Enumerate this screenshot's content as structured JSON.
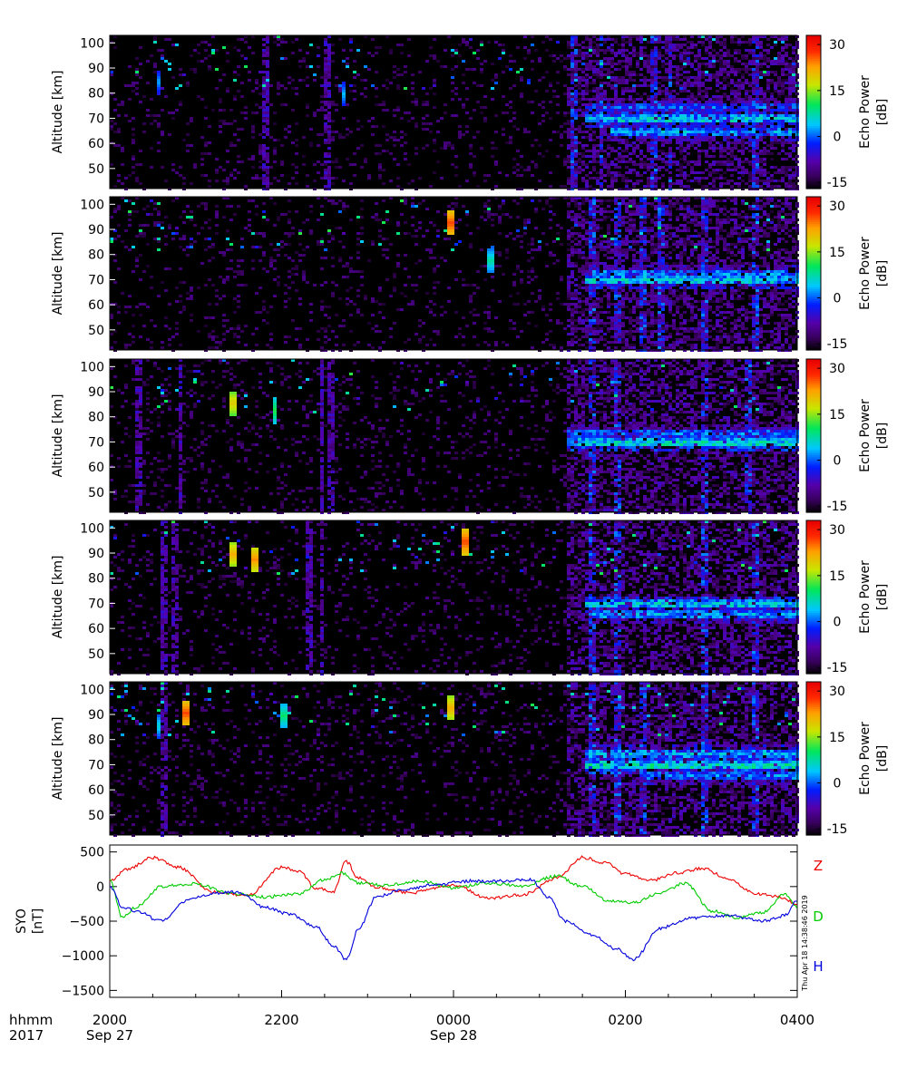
{
  "chart_data": [
    {
      "type": "heatmap",
      "ylabel": "Altitude [km]",
      "yticks": [
        50,
        60,
        70,
        80,
        90,
        100
      ],
      "ylim": [
        42,
        103
      ],
      "colorbar": {
        "label_line1": "Echo Power",
        "label_line2": "[dB]",
        "ticks": [
          -15,
          0,
          15,
          30
        ],
        "range": [
          -17,
          33
        ]
      },
      "x_span_hours": [
        0,
        8
      ],
      "features": {
        "layers": [
          {
            "start": 5.5,
            "alt": 70,
            "v": 6
          },
          {
            "start": 5.8,
            "alt": 65,
            "v": 3
          },
          {
            "start": 5.5,
            "alt": 75,
            "v": 0
          }
        ],
        "columns": [
          -0.1,
          1.8,
          2.5,
          5.4,
          5.7,
          6.3,
          6.5,
          7.5
        ],
        "blobs": [
          {
            "t": 0.55,
            "alt": 85,
            "v": 3
          },
          {
            "t": 2.7,
            "alt": 80,
            "v": 4
          }
        ]
      }
    },
    {
      "type": "heatmap",
      "ylabel": "Altitude [km]",
      "yticks": [
        50,
        60,
        70,
        80,
        90,
        100
      ],
      "ylim": [
        42,
        103
      ],
      "colorbar": {
        "label_line1": "Echo Power",
        "label_line2": "[dB]",
        "ticks": [
          -15,
          0,
          15,
          30
        ],
        "range": [
          -17,
          33
        ]
      },
      "x_span_hours": [
        0,
        8
      ],
      "features": {
        "layers": [
          {
            "start": 5.5,
            "alt": 70,
            "v": 6
          },
          {
            "start": 5.6,
            "alt": 73,
            "v": 2
          }
        ],
        "columns": [
          -0.1,
          5.6,
          5.9,
          6.2,
          6.4,
          6.9,
          7.5
        ],
        "blobs": [
          {
            "t": 3.95,
            "alt": 93,
            "v": 27
          },
          {
            "t": 4.4,
            "alt": 78,
            "v": 8
          }
        ]
      }
    },
    {
      "type": "heatmap",
      "ylabel": "Altitude [km]",
      "yticks": [
        50,
        60,
        70,
        80,
        90,
        100
      ],
      "ylim": [
        42,
        103
      ],
      "colorbar": {
        "label_line1": "Echo Power",
        "label_line2": "[dB]",
        "ticks": [
          -15,
          0,
          15,
          30
        ],
        "range": [
          -17,
          33
        ]
      },
      "x_span_hours": [
        0,
        8
      ],
      "features": {
        "layers": [
          {
            "start": 5.3,
            "alt": 70,
            "v": 7
          },
          {
            "start": 5.3,
            "alt": 74,
            "v": 1
          }
        ],
        "columns": [
          -0.1,
          0.3,
          0.8,
          2.45,
          2.55,
          5.6,
          5.9,
          6.9,
          7.4
        ],
        "blobs": [
          {
            "t": 1.4,
            "alt": 86,
            "v": 20
          },
          {
            "t": 1.9,
            "alt": 83,
            "v": 12
          }
        ]
      }
    },
    {
      "type": "heatmap",
      "ylabel": "Altitude [km]",
      "yticks": [
        50,
        60,
        70,
        80,
        90,
        100
      ],
      "ylim": [
        42,
        103
      ],
      "colorbar": {
        "label_line1": "Echo Power",
        "label_line2": "[dB]",
        "ticks": [
          -15,
          0,
          15,
          30
        ],
        "range": [
          -17,
          33
        ]
      },
      "x_span_hours": [
        0,
        8
      ],
      "features": {
        "layers": [
          {
            "start": 5.5,
            "alt": 70,
            "v": 6
          },
          {
            "start": 5.6,
            "alt": 66,
            "v": 3
          }
        ],
        "columns": [
          -0.1,
          0.6,
          0.75,
          2.3,
          2.45,
          5.6,
          5.9,
          6.9,
          7.5
        ],
        "blobs": [
          {
            "t": 1.4,
            "alt": 90,
            "v": 22
          },
          {
            "t": 1.65,
            "alt": 88,
            "v": 24
          },
          {
            "t": 4.1,
            "alt": 95,
            "v": 27
          }
        ]
      }
    },
    {
      "type": "heatmap",
      "ylabel": "Altitude [km]",
      "yticks": [
        50,
        60,
        70,
        80,
        90,
        100
      ],
      "ylim": [
        42,
        103
      ],
      "colorbar": {
        "label_line1": "Echo Power",
        "label_line2": "[dB]",
        "ticks": [
          -15,
          0,
          15,
          30
        ],
        "range": [
          -17,
          33
        ]
      },
      "x_span_hours": [
        0,
        8
      ],
      "features": {
        "layers": [
          {
            "start": 5.5,
            "alt": 70,
            "v": 8
          },
          {
            "start": 5.5,
            "alt": 75,
            "v": 4
          },
          {
            "start": 6.2,
            "alt": 66,
            "v": 2
          }
        ],
        "columns": [
          -0.1,
          0.6,
          5.6,
          5.9,
          6.2,
          6.9,
          7.5
        ],
        "blobs": [
          {
            "t": 0.55,
            "alt": 86,
            "v": 6
          },
          {
            "t": 0.85,
            "alt": 91,
            "v": 27
          },
          {
            "t": 2.0,
            "alt": 90,
            "v": 10
          },
          {
            "t": 3.95,
            "alt": 93,
            "v": 22
          }
        ]
      }
    },
    {
      "type": "line",
      "ylabel_line1": "SYO",
      "ylabel_line2": "[nT]",
      "ylim": [
        -1600,
        600
      ],
      "yticks": [
        500,
        0,
        -500,
        -1000,
        -1500
      ],
      "timestamp": "Thu Apr 18 14:38:46 2019",
      "series": [
        {
          "name": "Z",
          "color": "#ee0000",
          "t": [
            0,
            0.2,
            0.5,
            0.8,
            1.2,
            1.6,
            2.0,
            2.2,
            2.4,
            2.6,
            2.75,
            2.9,
            3.1,
            3.5,
            4.0,
            4.4,
            4.8,
            5.2,
            5.5,
            5.75,
            6.0,
            6.3,
            6.6,
            6.9,
            7.2,
            7.5,
            7.8,
            8.0
          ],
          "v": [
            80,
            250,
            420,
            280,
            -80,
            -130,
            280,
            220,
            -20,
            -80,
            360,
            120,
            -10,
            -90,
            30,
            -170,
            -120,
            120,
            420,
            350,
            180,
            90,
            200,
            260,
            120,
            -100,
            -150,
            -250
          ]
        },
        {
          "name": "D",
          "color": "#00cc00",
          "t": [
            0,
            0.15,
            0.3,
            0.6,
            1.0,
            1.4,
            1.8,
            2.2,
            2.5,
            2.7,
            2.9,
            3.2,
            3.6,
            4.0,
            4.4,
            4.8,
            5.2,
            5.5,
            5.8,
            6.1,
            6.4,
            6.7,
            7.0,
            7.3,
            7.6,
            7.85,
            8.0
          ],
          "v": [
            100,
            -450,
            -300,
            0,
            40,
            -100,
            -150,
            -100,
            100,
            200,
            50,
            20,
            80,
            -20,
            50,
            10,
            150,
            0,
            -200,
            -230,
            -100,
            50,
            -350,
            -450,
            -380,
            -100,
            -300
          ]
        },
        {
          "name": "H",
          "color": "#0000dd",
          "t": [
            0,
            0.15,
            0.3,
            0.6,
            0.9,
            1.2,
            1.5,
            1.8,
            2.1,
            2.4,
            2.6,
            2.75,
            2.9,
            3.1,
            3.4,
            3.8,
            4.2,
            4.6,
            4.9,
            5.1,
            5.3,
            5.6,
            5.9,
            6.1,
            6.4,
            6.8,
            7.2,
            7.6,
            7.85,
            8.0
          ],
          "v": [
            0,
            -300,
            -350,
            -500,
            -200,
            -100,
            -80,
            -300,
            -400,
            -580,
            -850,
            -1050,
            -600,
            -150,
            -50,
            30,
            80,
            80,
            100,
            -150,
            -500,
            -700,
            -900,
            -1050,
            -600,
            -450,
            -420,
            -500,
            -420,
            -200
          ]
        }
      ]
    }
  ],
  "xaxis": {
    "row1_label": "hhmm",
    "row2_label": "2017",
    "ticks": [
      {
        "t": 0,
        "label": "2000"
      },
      {
        "t": 2,
        "label": "2200"
      },
      {
        "t": 4,
        "label": "0000"
      },
      {
        "t": 6,
        "label": "0200"
      },
      {
        "t": 8,
        "label": "0400"
      }
    ],
    "dates": [
      {
        "t": 0,
        "label": "Sep 27"
      },
      {
        "t": 4,
        "label": "Sep 28"
      }
    ]
  }
}
